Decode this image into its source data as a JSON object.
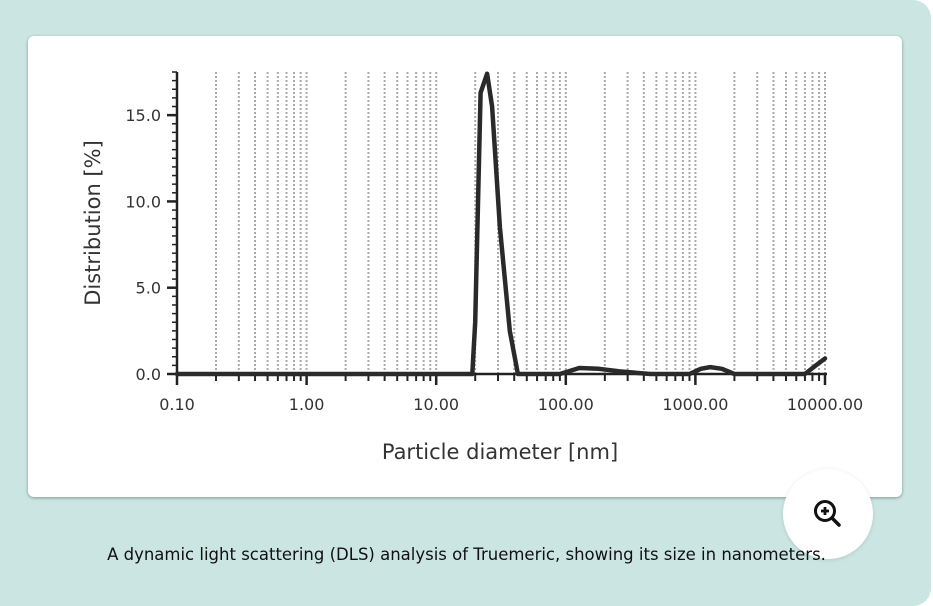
{
  "caption": "A dynamic light scattering (DLS) analysis of Truemeric, showing its size in nanometers.",
  "zoom_button": {
    "icon": "zoom-in-icon"
  },
  "colors": {
    "background": "#cbe5e3",
    "line": "#2a2a2a",
    "grid": "#aaaaaa"
  },
  "chart_data": {
    "type": "line",
    "title": "",
    "xlabel": "Particle diameter [nm]",
    "ylabel": "Distribution [%]",
    "xscale": "log",
    "xlim": [
      0.1,
      10000
    ],
    "ylim": [
      0,
      17.5
    ],
    "xticks": [
      0.1,
      1,
      10,
      100,
      1000,
      10000
    ],
    "xtick_labels": [
      "0.10",
      "1.00",
      "10.00",
      "100.00",
      "1000.00",
      "10000.00"
    ],
    "yticks": [
      0,
      5,
      10,
      15
    ],
    "ytick_labels": [
      "0.0",
      "5.0",
      "10.0",
      "15.0"
    ],
    "grid": "vertical dotted at minor log ticks",
    "series": [
      {
        "name": "Truemeric",
        "x": [
          0.1,
          19,
          20,
          22,
          24.7,
          27,
          31,
          37,
          42.7,
          90,
          127,
          180,
          260,
          450,
          900,
          1100,
          1300,
          1600,
          2000,
          7000,
          8500,
          10000
        ],
        "y": [
          0,
          0,
          3,
          16.3,
          17.4,
          15.5,
          8.5,
          2.5,
          0,
          0,
          0.35,
          0.3,
          0.15,
          0,
          0,
          0.3,
          0.4,
          0.3,
          0,
          0,
          0.5,
          0.9
        ]
      }
    ]
  }
}
